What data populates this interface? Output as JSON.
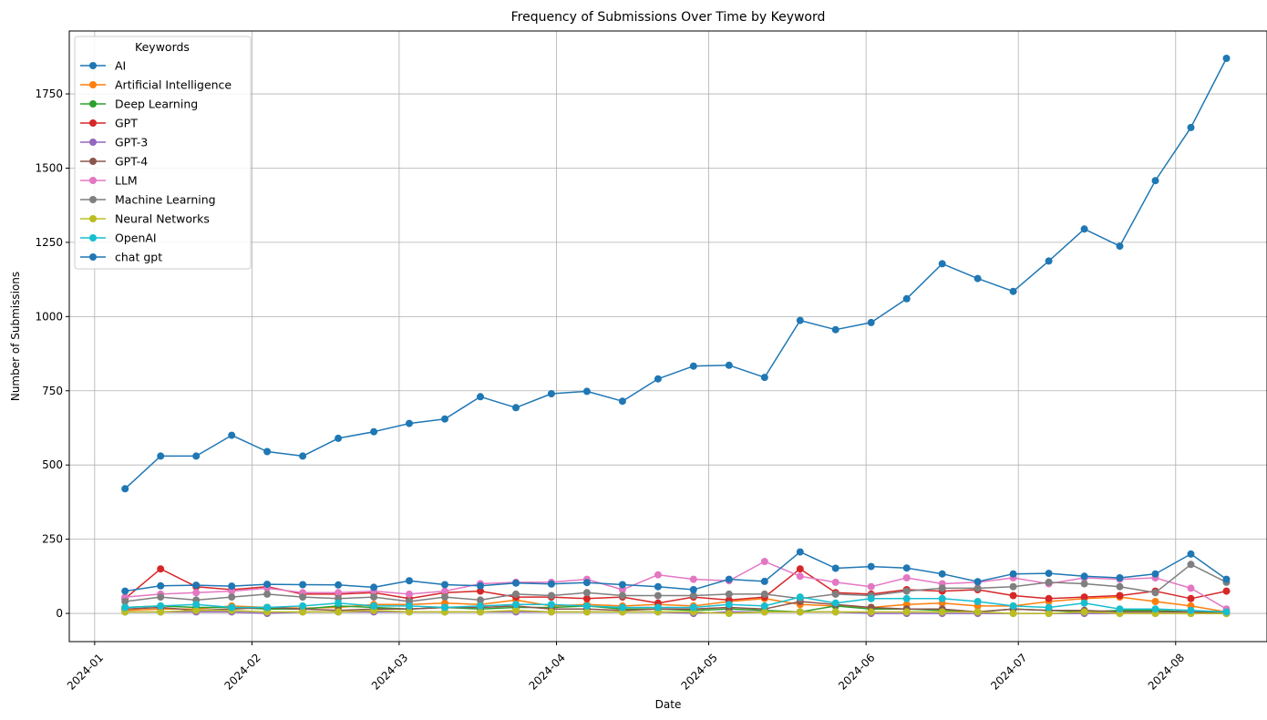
{
  "chart_data": {
    "type": "line",
    "title": "Frequency of Submissions Over Time by Keyword",
    "xlabel": "Date",
    "ylabel": "Number of Submissions",
    "x_axis_type": "date",
    "xlim": [
      "2023-12-27",
      "2024-08-19"
    ],
    "ylim": [
      -95,
      1962
    ],
    "xticks": [
      "2024-01-01",
      "2024-02-01",
      "2024-03-01",
      "2024-04-01",
      "2024-05-01",
      "2024-06-01",
      "2024-07-01",
      "2024-08-01"
    ],
    "xtick_labels": [
      "2024-01",
      "2024-02",
      "2024-03",
      "2024-04",
      "2024-05",
      "2024-06",
      "2024-07",
      "2024-08"
    ],
    "yticks": [
      0,
      250,
      500,
      750,
      1000,
      1250,
      1500,
      1750
    ],
    "ytick_labels": [
      "0",
      "250",
      "500",
      "750",
      "1000",
      "1250",
      "1500",
      "1750"
    ],
    "grid": true,
    "legend": {
      "title": "Keywords",
      "placement": "top-left"
    },
    "x": [
      "2024-01-07",
      "2024-01-14",
      "2024-01-21",
      "2024-01-28",
      "2024-02-04",
      "2024-02-11",
      "2024-02-18",
      "2024-02-25",
      "2024-03-03",
      "2024-03-10",
      "2024-03-17",
      "2024-03-24",
      "2024-03-31",
      "2024-04-07",
      "2024-04-14",
      "2024-04-21",
      "2024-04-28",
      "2024-05-05",
      "2024-05-12",
      "2024-05-19",
      "2024-05-26",
      "2024-06-02",
      "2024-06-09",
      "2024-06-16",
      "2024-06-23",
      "2024-06-30",
      "2024-07-07",
      "2024-07-14",
      "2024-07-21",
      "2024-07-28",
      "2024-08-04",
      "2024-08-11"
    ],
    "series": [
      {
        "name": "AI",
        "color": "#1f77b4",
        "values": [
          420,
          530,
          530,
          600,
          545,
          530,
          590,
          612,
          640,
          655,
          730,
          693,
          740,
          748,
          715,
          790,
          833,
          836,
          795,
          987,
          956,
          980,
          1060,
          1178,
          1128,
          1085,
          1187,
          1295,
          1237,
          1458,
          1637,
          1870
        ]
      },
      {
        "name": "Artificial Intelligence",
        "color": "#ff7f0e",
        "values": [
          10,
          15,
          15,
          25,
          20,
          18,
          20,
          30,
          30,
          35,
          30,
          45,
          25,
          30,
          25,
          30,
          25,
          40,
          50,
          30,
          25,
          20,
          30,
          35,
          25,
          25,
          40,
          50,
          55,
          40,
          25,
          5
        ]
      },
      {
        "name": "Deep Learning",
        "color": "#2ca02c",
        "values": [
          20,
          25,
          20,
          20,
          15,
          15,
          25,
          20,
          15,
          20,
          15,
          20,
          20,
          25,
          15,
          15,
          10,
          15,
          10,
          5,
          25,
          15,
          15,
          10,
          5,
          15,
          10,
          5,
          10,
          10,
          5,
          5
        ]
      },
      {
        "name": "GPT",
        "color": "#d62728",
        "values": [
          50,
          150,
          90,
          80,
          90,
          65,
          65,
          70,
          50,
          70,
          75,
          55,
          55,
          50,
          55,
          35,
          55,
          45,
          55,
          150,
          70,
          65,
          80,
          75,
          80,
          60,
          50,
          55,
          60,
          75,
          50,
          75
        ]
      },
      {
        "name": "GPT-3",
        "color": "#9467bd",
        "values": [
          5,
          5,
          5,
          5,
          0,
          5,
          5,
          5,
          5,
          5,
          5,
          5,
          5,
          5,
          5,
          5,
          0,
          5,
          5,
          5,
          5,
          0,
          0,
          0,
          0,
          0,
          0,
          0,
          0,
          0,
          0,
          0
        ]
      },
      {
        "name": "GPT-4",
        "color": "#8c564b",
        "values": [
          15,
          20,
          10,
          15,
          20,
          15,
          10,
          15,
          15,
          20,
          20,
          25,
          15,
          15,
          10,
          15,
          15,
          20,
          15,
          40,
          30,
          20,
          15,
          15,
          5,
          15,
          10,
          10,
          5,
          5,
          5,
          0
        ]
      },
      {
        "name": "LLM",
        "color": "#e377c2",
        "values": [
          55,
          65,
          70,
          75,
          85,
          70,
          70,
          75,
          65,
          75,
          100,
          105,
          105,
          115,
          80,
          130,
          115,
          110,
          175,
          125,
          105,
          90,
          120,
          100,
          105,
          120,
          100,
          120,
          115,
          120,
          85,
          15
        ]
      },
      {
        "name": "Machine Learning",
        "color": "#7f7f7f",
        "values": [
          40,
          55,
          45,
          55,
          65,
          55,
          50,
          55,
          40,
          55,
          45,
          65,
          60,
          70,
          60,
          60,
          60,
          65,
          65,
          50,
          65,
          60,
          75,
          85,
          85,
          90,
          105,
          100,
          90,
          70,
          165,
          105
        ]
      },
      {
        "name": "Neural Networks",
        "color": "#bcbd22",
        "values": [
          5,
          5,
          10,
          10,
          5,
          5,
          5,
          10,
          5,
          5,
          5,
          10,
          5,
          5,
          5,
          5,
          5,
          0,
          5,
          5,
          5,
          5,
          5,
          5,
          5,
          0,
          0,
          5,
          0,
          0,
          0,
          0
        ]
      },
      {
        "name": "OpenAI",
        "color": "#17becf",
        "values": [
          20,
          25,
          30,
          20,
          20,
          25,
          35,
          25,
          25,
          20,
          25,
          30,
          30,
          25,
          20,
          20,
          20,
          30,
          25,
          55,
          35,
          50,
          50,
          50,
          40,
          25,
          20,
          35,
          15,
          15,
          10,
          5
        ]
      },
      {
        "name": "chat gpt",
        "color": "#1f77b4",
        "values": [
          75,
          93,
          95,
          92,
          98,
          97,
          96,
          88,
          110,
          97,
          93,
          102,
          99,
          104,
          97,
          90,
          80,
          115,
          108,
          207,
          152,
          158,
          153,
          133,
          107,
          133,
          135,
          125,
          120,
          133,
          200,
          115
        ]
      }
    ]
  }
}
